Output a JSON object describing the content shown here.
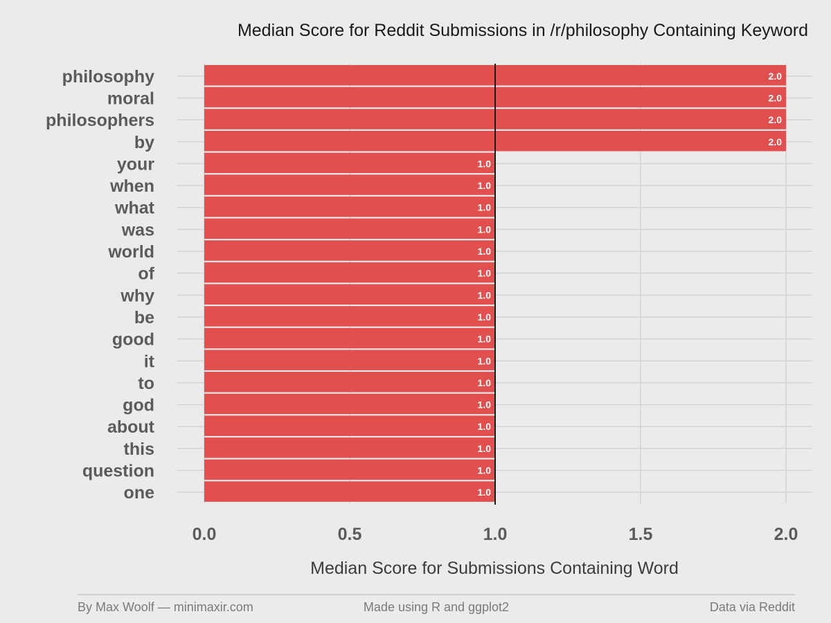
{
  "chart_data": {
    "type": "bar",
    "orientation": "horizontal",
    "title": "Median Score for Reddit Submissions in /r/philosophy Containing Keyword",
    "xlabel": "Median Score for Submissions Containing Word",
    "ylabel": "",
    "categories": [
      "philosophy",
      "moral",
      "philosophers",
      "by",
      "your",
      "when",
      "what",
      "was",
      "world",
      "of",
      "why",
      "be",
      "good",
      "it",
      "to",
      "god",
      "about",
      "this",
      "question",
      "one"
    ],
    "values": [
      2.0,
      2.0,
      2.0,
      2.0,
      1.0,
      1.0,
      1.0,
      1.0,
      1.0,
      1.0,
      1.0,
      1.0,
      1.0,
      1.0,
      1.0,
      1.0,
      1.0,
      1.0,
      1.0,
      1.0
    ],
    "data_labels": [
      "2.0",
      "2.0",
      "2.0",
      "2.0",
      "1.0",
      "1.0",
      "1.0",
      "1.0",
      "1.0",
      "1.0",
      "1.0",
      "1.0",
      "1.0",
      "1.0",
      "1.0",
      "1.0",
      "1.0",
      "1.0",
      "1.0",
      "1.0"
    ],
    "xlim": [
      0,
      2
    ],
    "xticks": [
      0,
      0.5,
      1,
      1.5,
      2
    ],
    "xtick_labels": [
      "0.0",
      "0.5",
      "1.0",
      "1.5",
      "2.0"
    ],
    "reference_line": 1.0,
    "grid": true,
    "legend": "none",
    "colors": {
      "bar": "#e04846",
      "background": "#ebebeb",
      "grid": "#d3d3d3",
      "reference_line": "#1a1a1a"
    }
  },
  "footer": {
    "left": "By Max Woolf — minimaxir.com",
    "center": "Made using R and ggplot2",
    "right": "Data via Reddit"
  }
}
